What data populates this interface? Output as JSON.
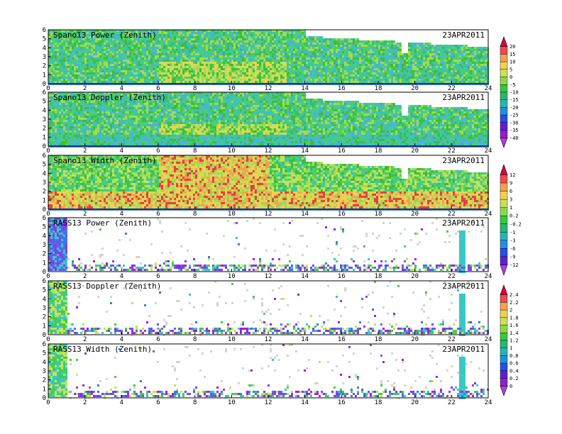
{
  "chart_data": [
    {
      "type": "heatmap",
      "title": "Spano13 Power (Zenith)",
      "date": "23APR2011",
      "x_ticks": [
        "0",
        "2",
        "4",
        "6",
        "8",
        "10",
        "12",
        "14",
        "16",
        "18",
        "20",
        "22",
        "24"
      ],
      "y_ticks": [
        "0",
        "1",
        "2",
        "3",
        "4",
        "5",
        "6"
      ],
      "xlim": [
        0,
        24
      ],
      "ylim": [
        0,
        6
      ],
      "mode": "dense",
      "colorbar": "A"
    },
    {
      "type": "heatmap",
      "title": "Spano13 Doppler (Zenith)",
      "date": "23APR2011",
      "x_ticks": [
        "0",
        "2",
        "4",
        "6",
        "8",
        "10",
        "12",
        "14",
        "16",
        "18",
        "20",
        "22",
        "24"
      ],
      "y_ticks": [
        "0",
        "1",
        "2",
        "3",
        "4",
        "5",
        "6"
      ],
      "xlim": [
        0,
        24
      ],
      "ylim": [
        0,
        6
      ],
      "mode": "dense"
    },
    {
      "type": "heatmap",
      "title": "Spano13 Width (Zenith)",
      "date": "23APR2011",
      "x_ticks": [
        "0",
        "2",
        "4",
        "6",
        "8",
        "10",
        "12",
        "14",
        "16",
        "18",
        "20",
        "22",
        "24"
      ],
      "y_ticks": [
        "0",
        "1",
        "2",
        "3",
        "4",
        "5",
        "6"
      ],
      "xlim": [
        0,
        24
      ],
      "ylim": [
        0,
        6
      ],
      "mode": "dense",
      "colorbar": "B"
    },
    {
      "type": "heatmap",
      "title": "RASS13 Power (Zenith)",
      "date": "23APR2011",
      "x_ticks": [
        "0",
        "2",
        "4",
        "6",
        "8",
        "10",
        "12",
        "14",
        "16",
        "18",
        "20",
        "22",
        "24"
      ],
      "y_ticks": [
        "0",
        "1",
        "2",
        "3",
        "4",
        "5",
        "6"
      ],
      "xlim": [
        0,
        24
      ],
      "ylim": [
        0,
        6
      ],
      "mode": "sparse"
    },
    {
      "type": "heatmap",
      "title": "RASS13 Doppler (Zenith)",
      "date": "23APR2011",
      "x_ticks": [
        "0",
        "2",
        "4",
        "6",
        "8",
        "10",
        "12",
        "14",
        "16",
        "18",
        "20",
        "22",
        "24"
      ],
      "y_ticks": [
        "0",
        "1",
        "2",
        "3",
        "4",
        "5",
        "6"
      ],
      "xlim": [
        0,
        24
      ],
      "ylim": [
        0,
        6
      ],
      "mode": "sparse",
      "colorbar": "C"
    },
    {
      "type": "heatmap",
      "title": "RASS13 Width (Zenith)",
      "date": "23APR2011",
      "x_ticks": [
        "0",
        "2",
        "4",
        "6",
        "8",
        "10",
        "12",
        "14",
        "16",
        "18",
        "20",
        "22",
        "24"
      ],
      "y_ticks": [
        "0",
        "1",
        "2",
        "3",
        "4",
        "5",
        "6"
      ],
      "xlim": [
        0,
        24
      ],
      "ylim": [
        0,
        6
      ],
      "mode": "sparse"
    }
  ],
  "colorbars": {
    "A": {
      "labels": [
        "20",
        "15",
        "10",
        "5",
        "0",
        "-5",
        "-10",
        "-15",
        "-20",
        "-25",
        "-30",
        "-35",
        "-40"
      ],
      "colors": [
        "#e0003c",
        "#f04a4a",
        "#f5a050",
        "#f0d050",
        "#c8e05a",
        "#8cd84a",
        "#38c83c",
        "#28b86e",
        "#28b4b4",
        "#2090e0",
        "#2850e0",
        "#6020d0",
        "#9020c8",
        "#b040e0"
      ]
    },
    "B": {
      "labels": [
        "12",
        "9",
        "6",
        "3",
        "1",
        "0.2",
        "-0.2",
        "-1",
        "-3",
        "-6",
        "-9",
        "-12"
      ],
      "colors": [
        "#e0003c",
        "#f04a4a",
        "#f5a050",
        "#f0d050",
        "#c8e05a",
        "#8cd84a",
        "#38c83c",
        "#28b86e",
        "#28b4b4",
        "#2090e0",
        "#2850e0",
        "#6020d0",
        "#b040e0"
      ]
    },
    "C": {
      "labels": [
        "2.4",
        "2.2",
        "2",
        "1.8",
        "1.6",
        "1.4",
        "1.2",
        "1",
        "0.8",
        "0.6",
        "0.4",
        "0.2",
        "0"
      ],
      "colors": [
        "#e0003c",
        "#f04a4a",
        "#f5a050",
        "#f0d050",
        "#c8e05a",
        "#8cd84a",
        "#38c83c",
        "#28b86e",
        "#28b4b4",
        "#2090e0",
        "#2850e0",
        "#6020d0",
        "#9020c8",
        "#b040e0"
      ]
    }
  },
  "colors": {
    "dense_palette": [
      "#48b4d8",
      "#3cc8a8",
      "#50d060",
      "#3cbe3c",
      "#a0dc50",
      "#c8e05a",
      "#f0d050",
      "#f5a050",
      "#e84040"
    ],
    "sparse_palette": [
      "#a020e0",
      "#8a3ce8",
      "#3c78e8",
      "#38c8c8",
      "#40d040",
      "#c8e05a"
    ],
    "missing": "#ffffff"
  }
}
